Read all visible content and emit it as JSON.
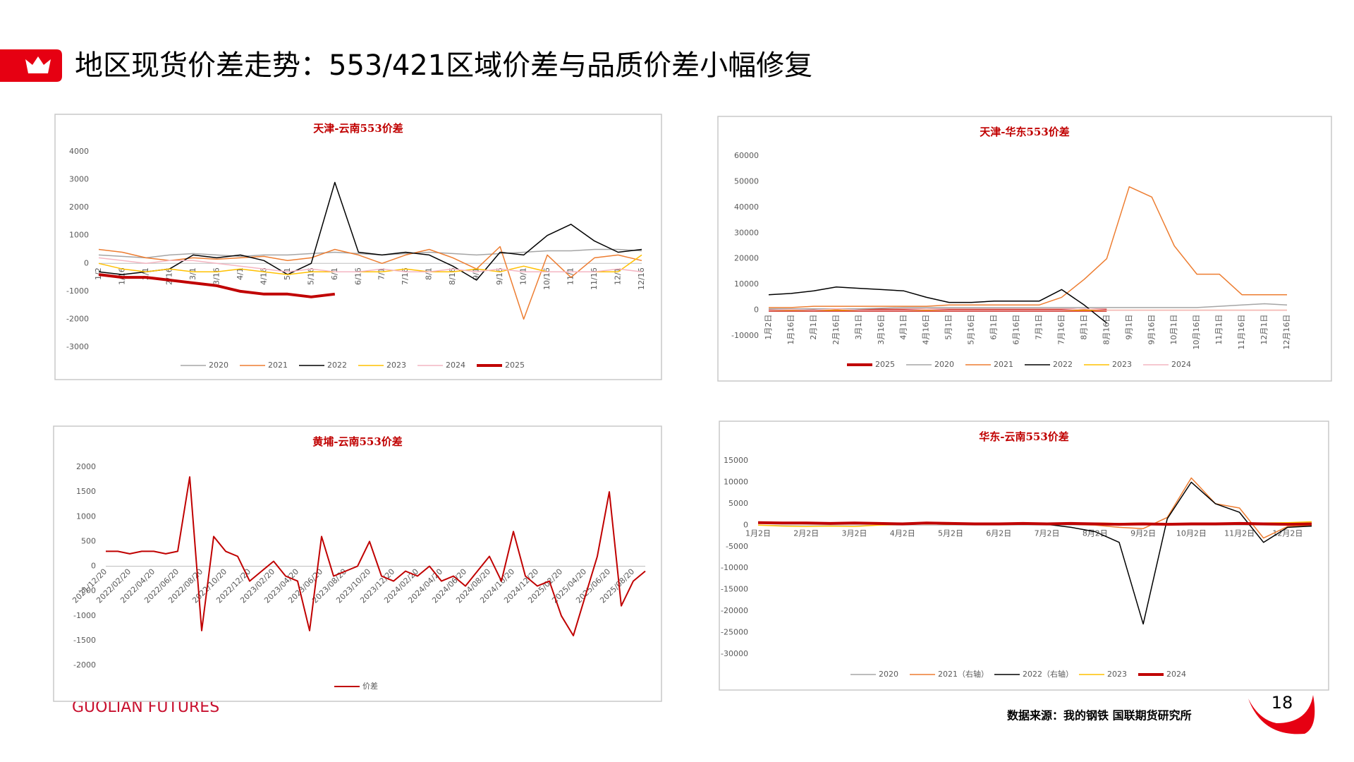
{
  "title": "地区现货价差走势：553/421区域价差与品质价差小幅修复",
  "logo": "GUOLIAN FUTURES",
  "source": "数据来源：我的钢铁  国联期货研究所",
  "page_number": "18",
  "chart_data": [
    {
      "type": "line",
      "title": "天津-云南553价差",
      "categories": [
        "1/2",
        "1/16",
        "2/1",
        "2/16",
        "3/1",
        "3/16",
        "4/1",
        "4/16",
        "5/1",
        "5/16",
        "6/1",
        "6/16",
        "7/1",
        "7/16",
        "8/1",
        "8/16",
        "9/1",
        "9/16",
        "10/1",
        "10/16",
        "11/1",
        "11/16",
        "12/1",
        "12/16"
      ],
      "ylim": [
        -3000,
        4000
      ],
      "yticks": [
        -3000,
        -2000,
        -1000,
        0,
        1000,
        2000,
        3000,
        4000
      ],
      "series": [
        {
          "name": "2020",
          "color": "#a5a5a5",
          "width": 1.5,
          "values": [
            300,
            250,
            200,
            300,
            350,
            300,
            250,
            300,
            300,
            350,
            400,
            350,
            300,
            350,
            400,
            350,
            300,
            350,
            400,
            450,
            450,
            500,
            500,
            450
          ]
        },
        {
          "name": "2021",
          "color": "#ed7d31",
          "width": 1.5,
          "values": [
            500,
            400,
            200,
            100,
            200,
            150,
            200,
            250,
            100,
            200,
            500,
            300,
            0,
            300,
            500,
            200,
            -200,
            600,
            -2000,
            300,
            -500,
            200,
            300,
            100
          ]
        },
        {
          "name": "2022",
          "color": "#000000",
          "width": 1.5,
          "values": [
            -300,
            -400,
            -300,
            -200,
            300,
            200,
            300,
            100,
            -400,
            0,
            2900,
            400,
            300,
            400,
            300,
            -100,
            -600,
            400,
            300,
            1000,
            1400,
            800,
            400,
            500
          ]
        },
        {
          "name": "2023",
          "color": "#ffc000",
          "width": 1.5,
          "values": [
            0,
            -200,
            -300,
            -200,
            -300,
            -300,
            -200,
            -300,
            -400,
            -300,
            -300,
            -300,
            -300,
            -200,
            -300,
            -300,
            -200,
            -300,
            -100,
            -300,
            -300,
            -300,
            -300,
            300
          ]
        },
        {
          "name": "2024",
          "color": "#f4b6c2",
          "width": 1.5,
          "values": [
            200,
            100,
            0,
            100,
            100,
            0,
            -100,
            -200,
            -300,
            -200,
            -300,
            -300,
            -200,
            -300,
            -300,
            -200,
            -300,
            -200,
            -300,
            -300,
            -300,
            -300,
            -200,
            -300
          ]
        },
        {
          "name": "2025",
          "color": "#c00000",
          "width": 4,
          "values": [
            -400,
            -500,
            -500,
            -600,
            -700,
            -800,
            -1000,
            -1100,
            -1100,
            -1200,
            -1100,
            null,
            null,
            null,
            null,
            null,
            null,
            null,
            null,
            null,
            null,
            null,
            null,
            null
          ]
        }
      ]
    },
    {
      "type": "line",
      "title": "天津-华东553价差",
      "categories": [
        "1月2日",
        "1月16日",
        "2月1日",
        "2月16日",
        "3月1日",
        "3月16日",
        "4月1日",
        "4月16日",
        "5月1日",
        "5月16日",
        "6月1日",
        "6月16日",
        "7月1日",
        "7月16日",
        "8月1日",
        "8月16日",
        "9月1日",
        "9月16日",
        "10月1日",
        "10月16日",
        "11月1日",
        "11月16日",
        "12月1日",
        "12月16日"
      ],
      "ylim": [
        -10000,
        60000
      ],
      "yticks": [
        -10000,
        0,
        10000,
        20000,
        30000,
        40000,
        50000,
        60000
      ],
      "series": [
        {
          "name": "2025",
          "color": "#c00000",
          "width": 4,
          "values": [
            0,
            0,
            0,
            0,
            0,
            0,
            0,
            0,
            0,
            0,
            0,
            0,
            0,
            0,
            0,
            0,
            null,
            null,
            null,
            null,
            null,
            null,
            null,
            null
          ]
        },
        {
          "name": "2020",
          "color": "#a5a5a5",
          "width": 1.5,
          "values": [
            500,
            500,
            500,
            500,
            500,
            800,
            1000,
            1000,
            1000,
            1000,
            1000,
            1000,
            1000,
            1000,
            1000,
            1000,
            1000,
            1000,
            1000,
            1000,
            1500,
            2000,
            2500,
            2000
          ]
        },
        {
          "name": "2021",
          "color": "#ed7d31",
          "width": 1.5,
          "values": [
            1000,
            1000,
            1500,
            1500,
            1500,
            1500,
            1500,
            1500,
            2000,
            2000,
            2000,
            2000,
            2000,
            5000,
            12000,
            20000,
            48000,
            44000,
            25000,
            14000,
            14000,
            6000,
            6000,
            6000
          ]
        },
        {
          "name": "2022",
          "color": "#000000",
          "width": 1.5,
          "values": [
            6000,
            6500,
            7500,
            9000,
            8500,
            8000,
            7500,
            5000,
            3000,
            3000,
            3500,
            3500,
            3500,
            8000,
            2000,
            -5000,
            null,
            null,
            null,
            null,
            null,
            null,
            null,
            null
          ]
        },
        {
          "name": "2023",
          "color": "#ffc000",
          "width": 1.5,
          "values": [
            0,
            0,
            0,
            0,
            0,
            0,
            0,
            0,
            0,
            0,
            0,
            0,
            0,
            0,
            0,
            0,
            0,
            0,
            0,
            0,
            0,
            0,
            0,
            0
          ]
        },
        {
          "name": "2024",
          "color": "#f4b6c2",
          "width": 1.5,
          "values": [
            0,
            200,
            0,
            500,
            0,
            0,
            0,
            300,
            0,
            0,
            0,
            0,
            0,
            0,
            500,
            0,
            0,
            0,
            0,
            0,
            0,
            0,
            0,
            0
          ]
        }
      ]
    },
    {
      "type": "line",
      "title": "黄埔-云南553价差",
      "categories": [
        "2021/12/20",
        null,
        "2022/02/20",
        null,
        "2022/04/20",
        null,
        "2022/06/20",
        null,
        "2022/08/20",
        null,
        "2022/10/20",
        null,
        "2022/12/20",
        null,
        "2023/02/20",
        null,
        "2023/04/20",
        null,
        "2023/06/20",
        null,
        "2023/08/20",
        null,
        "2023/10/20",
        null,
        "2023/12/20",
        null,
        "2024/02/20",
        null,
        "2024/04/20",
        null,
        "2024/06/20",
        null,
        "2024/08/20",
        null,
        "2024/10/20",
        null,
        "2024/12/20",
        null,
        "2025/02/20",
        null,
        "2025/04/20",
        null,
        "2025/06/20",
        null,
        "2025/08/20",
        null
      ],
      "ylim": [
        -2000,
        2000
      ],
      "yticks": [
        -2000,
        -1500,
        -1000,
        -500,
        0,
        500,
        1000,
        1500,
        2000
      ],
      "series": [
        {
          "name": "价差",
          "color": "#c00000",
          "width": 2,
          "values": [
            300,
            300,
            250,
            300,
            300,
            250,
            300,
            1800,
            -1300,
            600,
            300,
            200,
            -300,
            -100,
            100,
            -200,
            -300,
            -1300,
            600,
            -200,
            -100,
            0,
            500,
            -200,
            -300,
            -100,
            -200,
            0,
            -300,
            -200,
            -400,
            -100,
            200,
            -300,
            700,
            -200,
            -400,
            -300,
            -1000,
            -1400,
            -600,
            200,
            1500,
            -800,
            -300,
            -100
          ]
        }
      ]
    },
    {
      "type": "line",
      "title": "华东-云南553价差",
      "categories": [
        "1月2日",
        null,
        "2月2日",
        null,
        "3月2日",
        null,
        "4月2日",
        null,
        "5月2日",
        null,
        "6月2日",
        null,
        "7月2日",
        null,
        "8月2日",
        null,
        "9月2日",
        null,
        "10月2日",
        null,
        "11月2日",
        null,
        "12月2日",
        null
      ],
      "ylim": [
        -30000,
        15000
      ],
      "yticks": [
        -30000,
        -25000,
        -20000,
        -15000,
        -10000,
        -5000,
        0,
        5000,
        10000,
        15000
      ],
      "series": [
        {
          "name": "2020",
          "color": "#a5a5a5",
          "width": 1.5,
          "values": [
            500,
            500,
            300,
            300,
            300,
            300,
            300,
            500,
            300,
            300,
            300,
            300,
            300,
            300,
            300,
            300,
            300,
            300,
            300,
            300,
            300,
            300,
            300,
            300
          ]
        },
        {
          "name": "2021（右轴）",
          "color": "#ed7d31",
          "width": 1.5,
          "values": [
            700,
            600,
            500,
            400,
            500,
            400,
            300,
            400,
            300,
            400,
            300,
            400,
            300,
            200,
            0,
            -500,
            -800,
            1800,
            11000,
            5000,
            4000,
            -3000,
            -300,
            0
          ]
        },
        {
          "name": "2022（右轴）",
          "color": "#000000",
          "width": 1.5,
          "values": [
            600,
            500,
            400,
            300,
            400,
            300,
            200,
            300,
            200,
            300,
            200,
            300,
            200,
            -500,
            -1500,
            -4000,
            -23000,
            1500,
            10000,
            5000,
            3000,
            -4000,
            -500,
            -200
          ]
        },
        {
          "name": "2023",
          "color": "#ffc000",
          "width": 1.5,
          "values": [
            0,
            -200,
            -300,
            -200,
            -300,
            0,
            200,
            300,
            200,
            300,
            400,
            300,
            200,
            400,
            500,
            400,
            500,
            300,
            400,
            300,
            400,
            500,
            600,
            800
          ]
        },
        {
          "name": "2024",
          "color": "#c00000",
          "width": 4,
          "values": [
            600,
            500,
            500,
            400,
            500,
            400,
            300,
            500,
            400,
            300,
            300,
            400,
            300,
            400,
            300,
            200,
            300,
            200,
            300,
            300,
            400,
            300,
            200,
            300
          ]
        }
      ]
    }
  ]
}
